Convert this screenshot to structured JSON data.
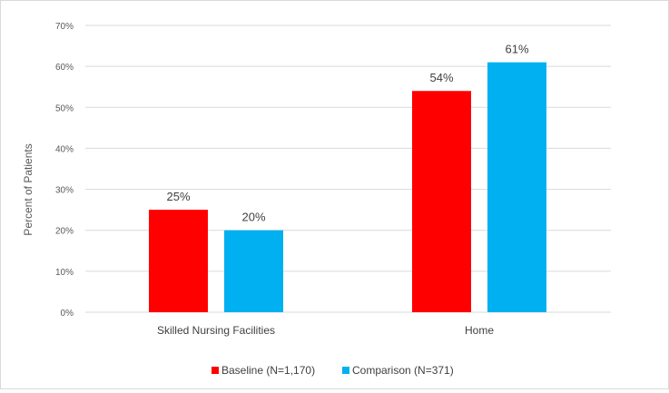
{
  "chart_data": {
    "type": "bar",
    "title": "",
    "xlabel": "",
    "ylabel": "Percent of Patients",
    "ylim": [
      0,
      70
    ],
    "yticks": [
      "0%",
      "10%",
      "20%",
      "30%",
      "40%",
      "50%",
      "60%",
      "70%"
    ],
    "ytick_values": [
      0,
      10,
      20,
      30,
      40,
      50,
      60,
      70
    ],
    "categories": [
      "Skilled Nursing Facilities",
      "Home"
    ],
    "series": [
      {
        "name": "Baseline (N=1,170)",
        "values": [
          25,
          54
        ],
        "labels": [
          "25%",
          "54%"
        ],
        "color": "#ff0000"
      },
      {
        "name": "Comparison (N=371)",
        "values": [
          20,
          61
        ],
        "labels": [
          "20%",
          "61%"
        ],
        "color": "#00b0f0"
      }
    ],
    "grid": true,
    "legend_position": "bottom",
    "gridline_color": "#d9d9d9",
    "text_color": "#404040"
  }
}
